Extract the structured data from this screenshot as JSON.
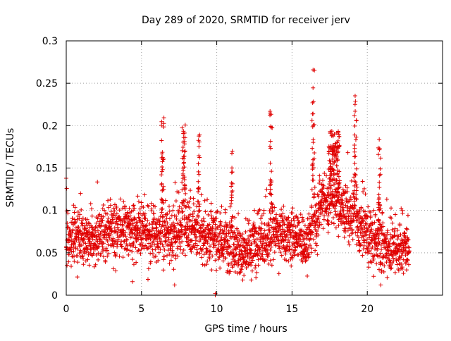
{
  "chart_data": {
    "type": "scatter",
    "title": "Day 289 of 2020, SRMTID for receiver jerv",
    "xlabel": "GPS time / hours",
    "ylabel": "SRMTID / TECUs",
    "xlim": [
      0,
      25
    ],
    "ylim": [
      0,
      0.3
    ],
    "xticks": [
      0,
      5,
      10,
      15,
      20
    ],
    "xtick_labels": [
      "0",
      "5",
      "10",
      "15",
      "20"
    ],
    "yticks": [
      0,
      0.05,
      0.1,
      0.15,
      0.2,
      0.25,
      0.3
    ],
    "ytick_labels": [
      "0",
      "0.05",
      "0.1",
      "0.15",
      "0.2",
      "0.25",
      "0.3"
    ],
    "grid": true,
    "marker": "+",
    "series": [
      {
        "name": "SRMTID",
        "color": "#e00000",
        "x_range": [
          0,
          22.8
        ],
        "n_points": 2600,
        "baseline": [
          [
            0,
            0.06
          ],
          [
            4,
            0.075
          ],
          [
            6,
            0.065
          ],
          [
            8,
            0.075
          ],
          [
            10,
            0.065
          ],
          [
            12,
            0.05
          ],
          [
            14,
            0.07
          ],
          [
            16,
            0.06
          ],
          [
            17,
            0.11
          ],
          [
            19,
            0.09
          ],
          [
            20.5,
            0.06
          ],
          [
            22.8,
            0.055
          ]
        ],
        "bursts": [
          {
            "x_center": 6.4,
            "x_width": 0.15,
            "y_max": 0.21
          },
          {
            "x_center": 7.8,
            "x_width": 0.2,
            "y_max": 0.21
          },
          {
            "x_center": 8.8,
            "x_width": 0.1,
            "y_max": 0.2
          },
          {
            "x_center": 11.0,
            "x_width": 0.1,
            "y_max": 0.17
          },
          {
            "x_center": 13.6,
            "x_width": 0.15,
            "y_max": 0.225
          },
          {
            "x_center": 16.4,
            "x_width": 0.15,
            "y_max": 0.27
          },
          {
            "x_center": 17.8,
            "x_width": 0.6,
            "y_max": 0.195
          },
          {
            "x_center": 19.2,
            "x_width": 0.15,
            "y_max": 0.24
          },
          {
            "x_center": 20.8,
            "x_width": 0.15,
            "y_max": 0.185
          }
        ],
        "outliers": [
          {
            "x": 0.0,
            "y": 0.138
          },
          {
            "x": 4.4,
            "y": 0.016
          },
          {
            "x": 7.2,
            "y": 0.012
          },
          {
            "x": 9.9,
            "y": 0.0
          },
          {
            "x": 9.9,
            "y": 0.002
          },
          {
            "x": 20.9,
            "y": 0.012
          }
        ]
      }
    ]
  }
}
